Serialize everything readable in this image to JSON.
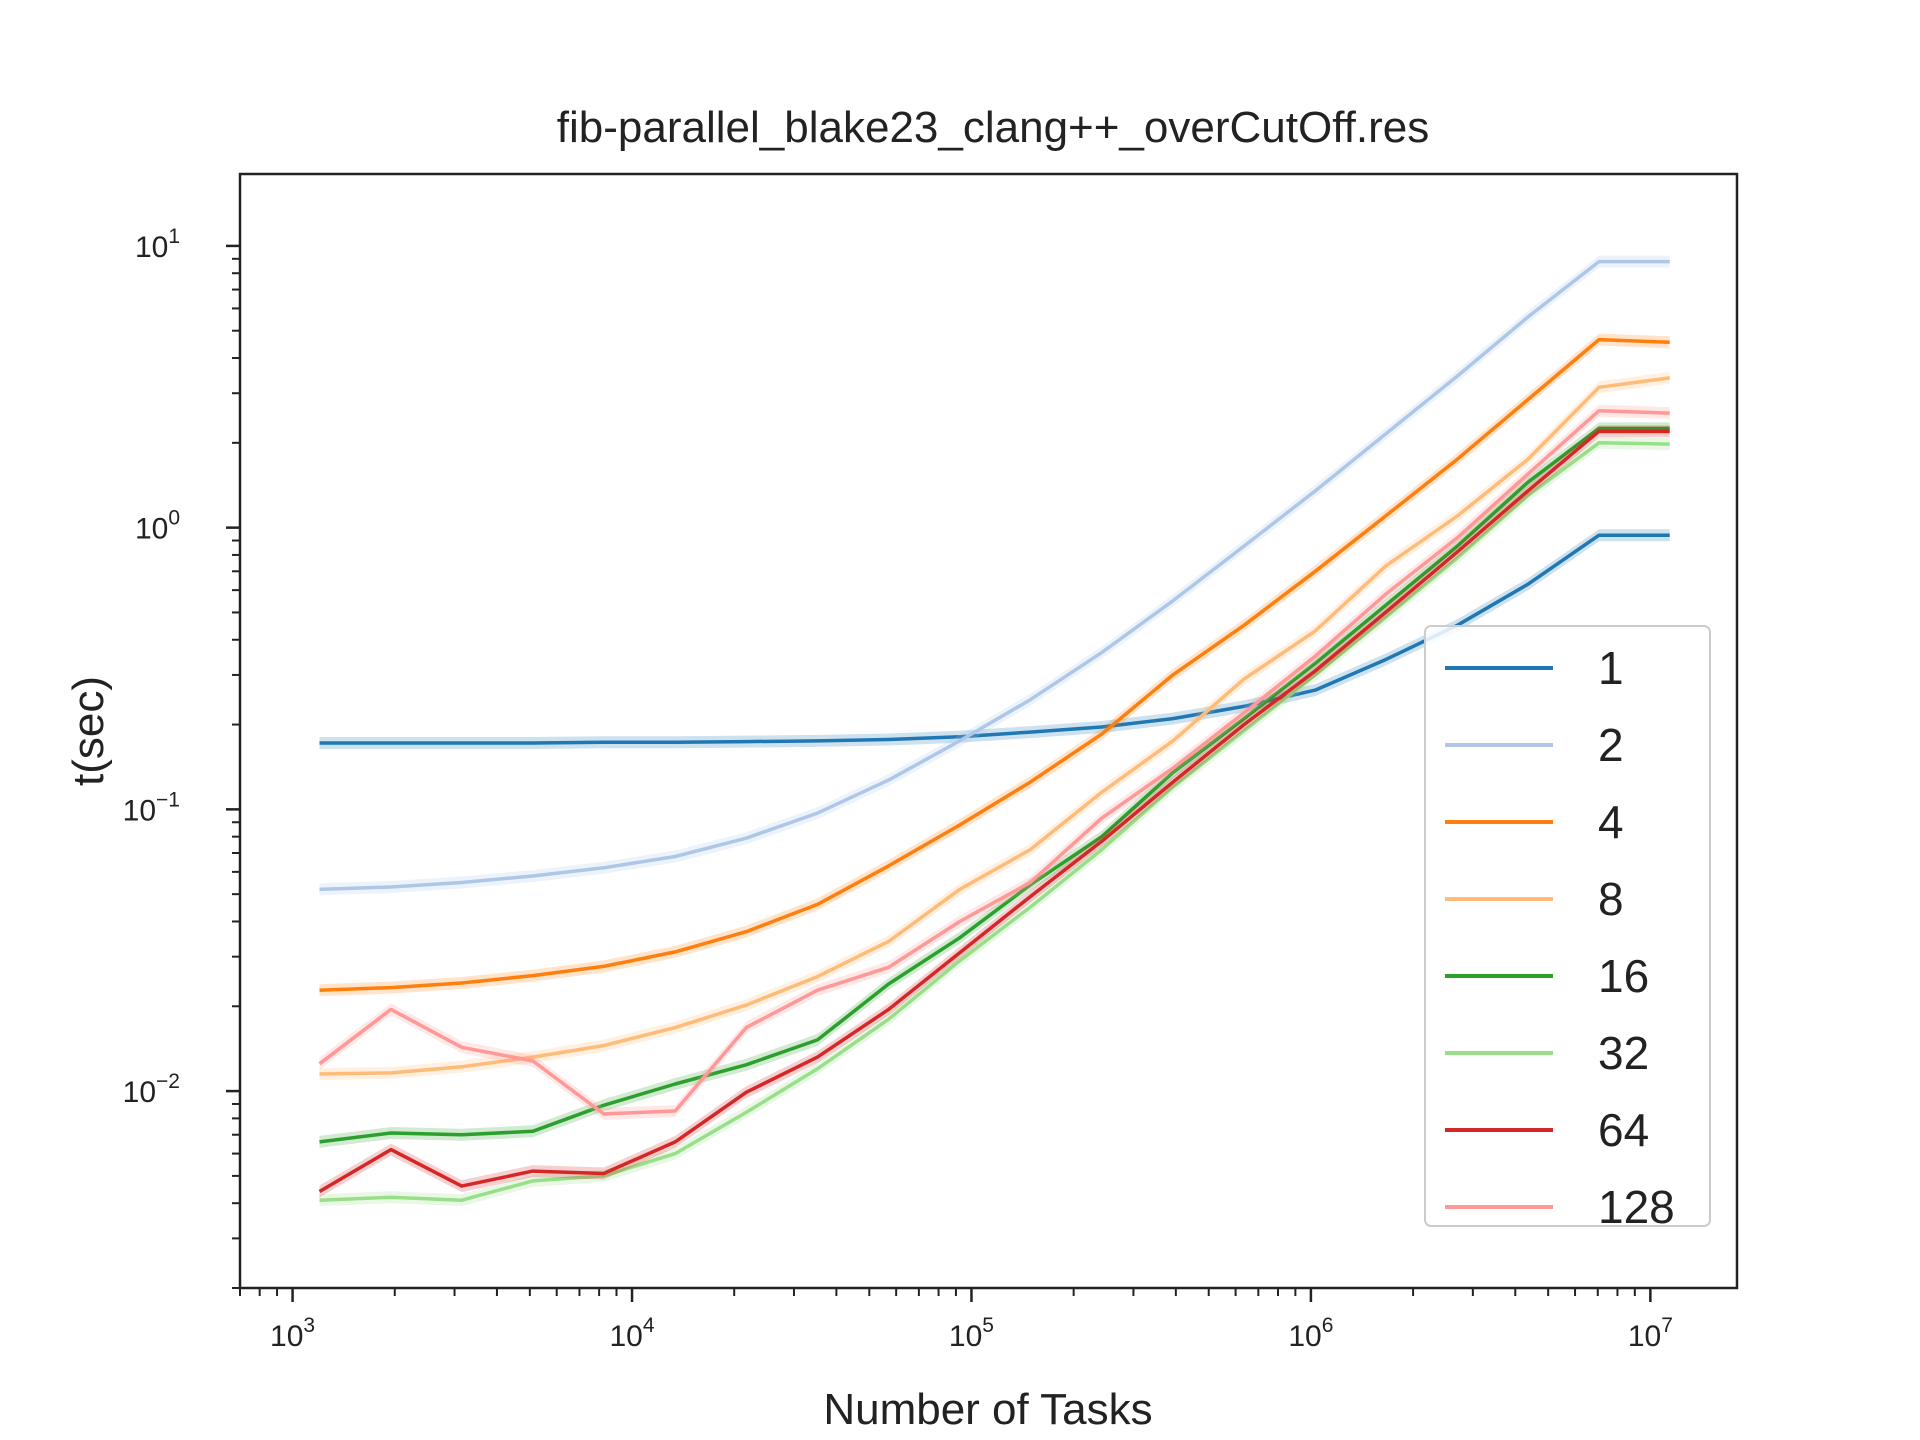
{
  "chart_data": {
    "type": "line",
    "title": "fib-parallel_blake23_clang++_overCutOff.res",
    "xlabel": "Number of Tasks",
    "ylabel": "t(sec)",
    "x_scale": "log",
    "y_scale": "log",
    "xlim": [
      700,
      18000000
    ],
    "ylim": [
      0.002,
      18
    ],
    "x_ticks": [
      {
        "base": "10",
        "exp": "3",
        "value": 1000
      },
      {
        "base": "10",
        "exp": "4",
        "value": 10000
      },
      {
        "base": "10",
        "exp": "5",
        "value": 100000
      },
      {
        "base": "10",
        "exp": "6",
        "value": 1000000
      },
      {
        "base": "10",
        "exp": "7",
        "value": 10000000
      }
    ],
    "y_ticks": [
      {
        "base": "10",
        "exp": "−2",
        "value": 0.01
      },
      {
        "base": "10",
        "exp": "−1",
        "value": 0.1
      },
      {
        "base": "10",
        "exp": "0",
        "value": 1
      },
      {
        "base": "10",
        "exp": "1",
        "value": 10
      }
    ],
    "grid": false,
    "legend_position": "lower-right",
    "x": [
      1200,
      1950,
      3150,
      5100,
      8250,
      13400,
      21700,
      35200,
      57000,
      92300,
      149000,
      242000,
      392000,
      635000,
      1030000,
      1660000,
      2700000,
      4360000,
      7060000,
      11400000
    ],
    "series": [
      {
        "name": "1",
        "color": "#1f77b4",
        "values": [
          0.172,
          0.172,
          0.172,
          0.172,
          0.173,
          0.173,
          0.174,
          0.175,
          0.177,
          0.181,
          0.188,
          0.196,
          0.21,
          0.232,
          0.265,
          0.34,
          0.45,
          0.63,
          0.94,
          0.94
        ]
      },
      {
        "name": "2",
        "color": "#aec7e8",
        "values": [
          0.052,
          0.053,
          0.055,
          0.058,
          0.062,
          0.068,
          0.079,
          0.097,
          0.127,
          0.175,
          0.245,
          0.36,
          0.55,
          0.86,
          1.35,
          2.15,
          3.45,
          5.6,
          8.8,
          8.8
        ]
      },
      {
        "name": "4",
        "color": "#ff7f0e",
        "values": [
          0.0228,
          0.0233,
          0.0242,
          0.0257,
          0.0277,
          0.0312,
          0.0368,
          0.046,
          0.063,
          0.088,
          0.125,
          0.185,
          0.3,
          0.45,
          0.7,
          1.1,
          1.75,
          2.85,
          4.65,
          4.55
        ]
      },
      {
        "name": "8",
        "color": "#ffbb78",
        "values": [
          0.0115,
          0.0116,
          0.0122,
          0.0132,
          0.0145,
          0.0168,
          0.0202,
          0.0255,
          0.034,
          0.052,
          0.072,
          0.115,
          0.175,
          0.29,
          0.43,
          0.73,
          1.1,
          1.75,
          3.15,
          3.4
        ]
      },
      {
        "name": "16",
        "color": "#2ca02c",
        "values": [
          0.0066,
          0.0071,
          0.007,
          0.0072,
          0.0089,
          0.0106,
          0.0124,
          0.0152,
          0.024,
          0.035,
          0.054,
          0.08,
          0.135,
          0.21,
          0.33,
          0.53,
          0.86,
          1.45,
          2.25,
          2.25
        ]
      },
      {
        "name": "32",
        "color": "#98df8a",
        "values": [
          0.0041,
          0.0042,
          0.0041,
          0.0048,
          0.005,
          0.006,
          0.0084,
          0.012,
          0.018,
          0.029,
          0.045,
          0.072,
          0.12,
          0.19,
          0.3,
          0.48,
          0.78,
          1.3,
          2.0,
          1.98
        ]
      },
      {
        "name": "64",
        "color": "#d62728",
        "values": [
          0.0044,
          0.0062,
          0.0046,
          0.0052,
          0.0051,
          0.0066,
          0.0099,
          0.0132,
          0.0195,
          0.031,
          0.049,
          0.077,
          0.125,
          0.2,
          0.31,
          0.5,
          0.82,
          1.35,
          2.2,
          2.2
        ]
      },
      {
        "name": "128",
        "color": "#ff9896",
        "values": [
          0.0125,
          0.0195,
          0.0143,
          0.0128,
          0.0083,
          0.0085,
          0.0168,
          0.0228,
          0.0275,
          0.04,
          0.055,
          0.093,
          0.14,
          0.22,
          0.35,
          0.58,
          0.92,
          1.55,
          2.6,
          2.55
        ]
      }
    ]
  }
}
